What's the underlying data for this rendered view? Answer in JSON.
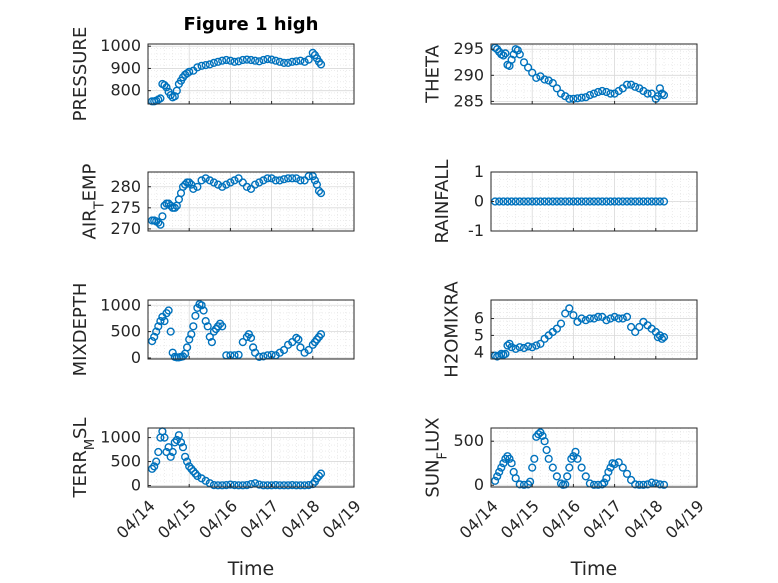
{
  "figure": {
    "title": "Figure 1 high",
    "xlabel": "Time"
  },
  "colors": {
    "marker": "#0072BD",
    "axis": "#262626",
    "grid": "#d9d9d9"
  },
  "xaxis": {
    "ticks": [
      "04/14",
      "04/15",
      "04/16",
      "04/17",
      "04/18",
      "04/19"
    ],
    "range": [
      0,
      5
    ]
  },
  "chart_data": [
    {
      "type": "scatter",
      "title": "Figure 1 high",
      "ylabel": "PRESSURE",
      "ylim": [
        740,
        1010
      ],
      "yticks": [
        800,
        900,
        1000
      ],
      "x": [
        0.1,
        0.15,
        0.2,
        0.25,
        0.3,
        0.35,
        0.4,
        0.45,
        0.5,
        0.55,
        0.6,
        0.65,
        0.7,
        0.75,
        0.8,
        0.85,
        0.9,
        0.95,
        1.0,
        1.1,
        1.2,
        1.3,
        1.4,
        1.5,
        1.6,
        1.7,
        1.8,
        1.9,
        2.0,
        2.1,
        2.2,
        2.3,
        2.4,
        2.5,
        2.6,
        2.7,
        2.8,
        2.9,
        3.0,
        3.1,
        3.2,
        3.3,
        3.4,
        3.5,
        3.6,
        3.7,
        3.8,
        3.9,
        4.0,
        4.05,
        4.1,
        4.15,
        4.2
      ],
      "y": [
        752,
        752,
        755,
        760,
        765,
        830,
        825,
        815,
        795,
        780,
        770,
        775,
        800,
        830,
        845,
        860,
        872,
        878,
        885,
        890,
        905,
        912,
        915,
        918,
        925,
        930,
        935,
        938,
        935,
        930,
        932,
        938,
        940,
        938,
        935,
        932,
        938,
        942,
        940,
        935,
        930,
        925,
        925,
        930,
        932,
        935,
        930,
        940,
        970,
        960,
        945,
        930,
        918
      ]
    },
    {
      "type": "scatter",
      "ylabel": "THETA",
      "ylim": [
        284.5,
        296
      ],
      "yticks": [
        285,
        290,
        295
      ],
      "x": [
        0.1,
        0.15,
        0.2,
        0.25,
        0.3,
        0.35,
        0.4,
        0.45,
        0.5,
        0.55,
        0.6,
        0.65,
        0.7,
        0.8,
        0.9,
        1.0,
        1.1,
        1.2,
        1.3,
        1.4,
        1.5,
        1.6,
        1.7,
        1.8,
        1.9,
        2.0,
        2.1,
        2.2,
        2.3,
        2.4,
        2.5,
        2.6,
        2.7,
        2.8,
        2.9,
        3.0,
        3.1,
        3.2,
        3.3,
        3.4,
        3.5,
        3.6,
        3.7,
        3.8,
        3.9,
        4.0,
        4.05,
        4.1,
        4.15,
        4.2
      ],
      "y": [
        295.3,
        295,
        294.5,
        294,
        293.8,
        294.2,
        292,
        291.8,
        293,
        294,
        295,
        294.8,
        294,
        292.5,
        291.5,
        290.5,
        289.5,
        289.8,
        289.2,
        289.0,
        288.5,
        287.5,
        286.5,
        286,
        285.5,
        285.5,
        285.6,
        285.7,
        285.8,
        286.2,
        286.5,
        286.8,
        287,
        286.8,
        286.5,
        286.5,
        287,
        287.5,
        288.2,
        288.2,
        287.8,
        287.5,
        287,
        286.5,
        286.5,
        285.5,
        286,
        287.5,
        286.5,
        286.2
      ]
    },
    {
      "type": "scatter",
      "ylabel": "AIR_TEMP",
      "ylim": [
        269.5,
        283.5
      ],
      "yticks": [
        270,
        275,
        280
      ],
      "x": [
        0.1,
        0.15,
        0.2,
        0.25,
        0.3,
        0.35,
        0.4,
        0.45,
        0.5,
        0.55,
        0.6,
        0.65,
        0.7,
        0.75,
        0.8,
        0.85,
        0.9,
        0.95,
        1.0,
        1.05,
        1.1,
        1.2,
        1.3,
        1.4,
        1.5,
        1.6,
        1.7,
        1.8,
        1.9,
        2.0,
        2.1,
        2.2,
        2.3,
        2.4,
        2.5,
        2.6,
        2.7,
        2.8,
        2.9,
        3.0,
        3.1,
        3.2,
        3.3,
        3.4,
        3.5,
        3.6,
        3.7,
        3.8,
        3.9,
        4.0,
        4.05,
        4.1,
        4.15,
        4.2
      ],
      "y": [
        272,
        272,
        271.8,
        271.5,
        271,
        273,
        275.5,
        276,
        276,
        275.5,
        275,
        275,
        275.5,
        277,
        278.5,
        280,
        280.5,
        281,
        281,
        280.5,
        279.5,
        280,
        281.5,
        282,
        281.5,
        281,
        280.5,
        280,
        280.5,
        281,
        281.5,
        282,
        281,
        280,
        279.5,
        280.5,
        281,
        281.5,
        282,
        282,
        281.5,
        281.5,
        281.8,
        282,
        282,
        282,
        281.5,
        281.5,
        282.5,
        282.5,
        281.5,
        280.5,
        279,
        278.5
      ]
    },
    {
      "type": "scatter",
      "ylabel": "RAINFALL",
      "ylim": [
        -1,
        1
      ],
      "yticks": [
        -1,
        0,
        1
      ],
      "x": [
        0.1,
        0.2,
        0.3,
        0.4,
        0.5,
        0.6,
        0.7,
        0.8,
        0.9,
        1.0,
        1.1,
        1.2,
        1.3,
        1.4,
        1.5,
        1.6,
        1.7,
        1.8,
        1.9,
        2.0,
        2.1,
        2.2,
        2.3,
        2.4,
        2.5,
        2.6,
        2.7,
        2.8,
        2.9,
        3.0,
        3.1,
        3.2,
        3.3,
        3.4,
        3.5,
        3.6,
        3.7,
        3.8,
        3.9,
        4.0,
        4.1,
        4.2
      ],
      "y": [
        0,
        0,
        0,
        0,
        0,
        0,
        0,
        0,
        0,
        0,
        0,
        0,
        0,
        0,
        0,
        0,
        0,
        0,
        0,
        0,
        0,
        0,
        0,
        0,
        0,
        0,
        0,
        0,
        0,
        0,
        0,
        0,
        0,
        0,
        0,
        0,
        0,
        0,
        0,
        0,
        0,
        0
      ]
    },
    {
      "type": "scatter",
      "ylabel": "MIXDEPTH",
      "ylim": [
        -20,
        1100
      ],
      "yticks": [
        0,
        500,
        1000
      ],
      "x": [
        0.1,
        0.15,
        0.2,
        0.25,
        0.3,
        0.35,
        0.4,
        0.45,
        0.5,
        0.55,
        0.6,
        0.65,
        0.7,
        0.75,
        0.8,
        0.85,
        0.9,
        0.95,
        1.0,
        1.05,
        1.1,
        1.15,
        1.2,
        1.25,
        1.3,
        1.35,
        1.4,
        1.45,
        1.5,
        1.55,
        1.6,
        1.65,
        1.7,
        1.75,
        1.8,
        1.9,
        2.0,
        2.1,
        2.2,
        2.3,
        2.4,
        2.45,
        2.5,
        2.55,
        2.6,
        2.7,
        2.8,
        2.9,
        3.0,
        3.1,
        3.2,
        3.3,
        3.4,
        3.5,
        3.6,
        3.65,
        3.7,
        3.8,
        3.9,
        4.0,
        4.05,
        4.1,
        4.15,
        4.2
      ],
      "y": [
        320,
        400,
        500,
        600,
        700,
        780,
        700,
        850,
        900,
        500,
        100,
        20,
        10,
        10,
        20,
        30,
        80,
        200,
        350,
        450,
        600,
        800,
        950,
        1020,
        1000,
        900,
        700,
        600,
        400,
        300,
        500,
        550,
        600,
        650,
        600,
        50,
        50,
        50,
        60,
        300,
        400,
        450,
        380,
        200,
        100,
        20,
        30,
        50,
        60,
        50,
        100,
        150,
        250,
        300,
        380,
        350,
        200,
        100,
        150,
        250,
        300,
        350,
        400,
        450
      ]
    },
    {
      "type": "scatter",
      "ylabel": "H2OMIXRA",
      "ylim": [
        3.6,
        7.1
      ],
      "yticks": [
        4,
        5,
        6
      ],
      "x": [
        0.1,
        0.15,
        0.2,
        0.25,
        0.3,
        0.35,
        0.4,
        0.45,
        0.5,
        0.6,
        0.7,
        0.8,
        0.9,
        1.0,
        1.1,
        1.2,
        1.3,
        1.4,
        1.5,
        1.6,
        1.7,
        1.8,
        1.9,
        2.0,
        2.1,
        2.2,
        2.3,
        2.4,
        2.5,
        2.6,
        2.7,
        2.8,
        2.9,
        3.0,
        3.1,
        3.2,
        3.3,
        3.4,
        3.5,
        3.6,
        3.7,
        3.8,
        3.9,
        4.0,
        4.05,
        4.1,
        4.15,
        4.2
      ],
      "y": [
        3.8,
        3.75,
        3.8,
        3.9,
        3.85,
        3.9,
        4.4,
        4.5,
        4.3,
        4.2,
        4.3,
        4.25,
        4.35,
        4.3,
        4.4,
        4.5,
        4.8,
        5.0,
        5.2,
        5.4,
        5.7,
        6.3,
        6.6,
        6.2,
        5.8,
        6.0,
        5.9,
        6.0,
        6.0,
        6.1,
        6.1,
        5.9,
        6.0,
        6.1,
        6.0,
        6.0,
        6.1,
        5.5,
        5.2,
        5.5,
        5.8,
        5.6,
        5.4,
        5.2,
        4.9,
        5.0,
        4.8,
        4.9
      ]
    },
    {
      "type": "scatter",
      "ylabel": "TERR_MSL",
      "ylim": [
        -30,
        1200
      ],
      "yticks": [
        0,
        500,
        1000
      ],
      "x": [
        0.1,
        0.15,
        0.2,
        0.25,
        0.3,
        0.35,
        0.4,
        0.45,
        0.5,
        0.55,
        0.6,
        0.65,
        0.7,
        0.75,
        0.8,
        0.85,
        0.9,
        0.95,
        1.0,
        1.05,
        1.1,
        1.15,
        1.2,
        1.3,
        1.4,
        1.5,
        1.6,
        1.7,
        1.8,
        1.9,
        2.0,
        2.1,
        2.2,
        2.3,
        2.4,
        2.5,
        2.6,
        2.7,
        2.8,
        2.9,
        3.0,
        3.1,
        3.2,
        3.3,
        3.4,
        3.5,
        3.6,
        3.7,
        3.8,
        3.9,
        4.0,
        4.05,
        4.1,
        4.15,
        4.2
      ],
      "y": [
        350,
        400,
        500,
        700,
        1000,
        1130,
        1000,
        700,
        800,
        600,
        700,
        900,
        950,
        1050,
        900,
        800,
        600,
        500,
        400,
        350,
        300,
        250,
        200,
        150,
        100,
        50,
        10,
        5,
        5,
        10,
        20,
        10,
        5,
        5,
        10,
        30,
        50,
        20,
        5,
        5,
        5,
        10,
        5,
        5,
        5,
        10,
        5,
        5,
        5,
        10,
        30,
        80,
        150,
        200,
        250
      ]
    },
    {
      "type": "scatter",
      "ylabel": "SUN_FLUX",
      "ylim": [
        -20,
        650
      ],
      "yticks": [
        0,
        500
      ],
      "x": [
        0.1,
        0.15,
        0.2,
        0.25,
        0.3,
        0.35,
        0.4,
        0.45,
        0.5,
        0.55,
        0.6,
        0.7,
        0.8,
        0.9,
        0.95,
        1.0,
        1.05,
        1.1,
        1.15,
        1.2,
        1.25,
        1.3,
        1.35,
        1.4,
        1.5,
        1.6,
        1.7,
        1.75,
        1.8,
        1.85,
        1.9,
        1.95,
        2.0,
        2.05,
        2.1,
        2.2,
        2.3,
        2.4,
        2.5,
        2.6,
        2.7,
        2.75,
        2.8,
        2.85,
        2.9,
        2.95,
        3.0,
        3.1,
        3.2,
        3.3,
        3.4,
        3.5,
        3.6,
        3.7,
        3.8,
        3.9,
        4.0,
        4.1,
        4.2
      ],
      "y": [
        50,
        100,
        150,
        200,
        250,
        300,
        330,
        300,
        250,
        150,
        80,
        10,
        5,
        10,
        40,
        200,
        300,
        550,
        580,
        600,
        560,
        500,
        400,
        300,
        200,
        100,
        20,
        5,
        10,
        100,
        200,
        300,
        330,
        380,
        300,
        200,
        100,
        20,
        5,
        5,
        10,
        30,
        80,
        150,
        200,
        250,
        240,
        260,
        200,
        130,
        60,
        10,
        5,
        5,
        10,
        30,
        20,
        10,
        5
      ]
    }
  ]
}
